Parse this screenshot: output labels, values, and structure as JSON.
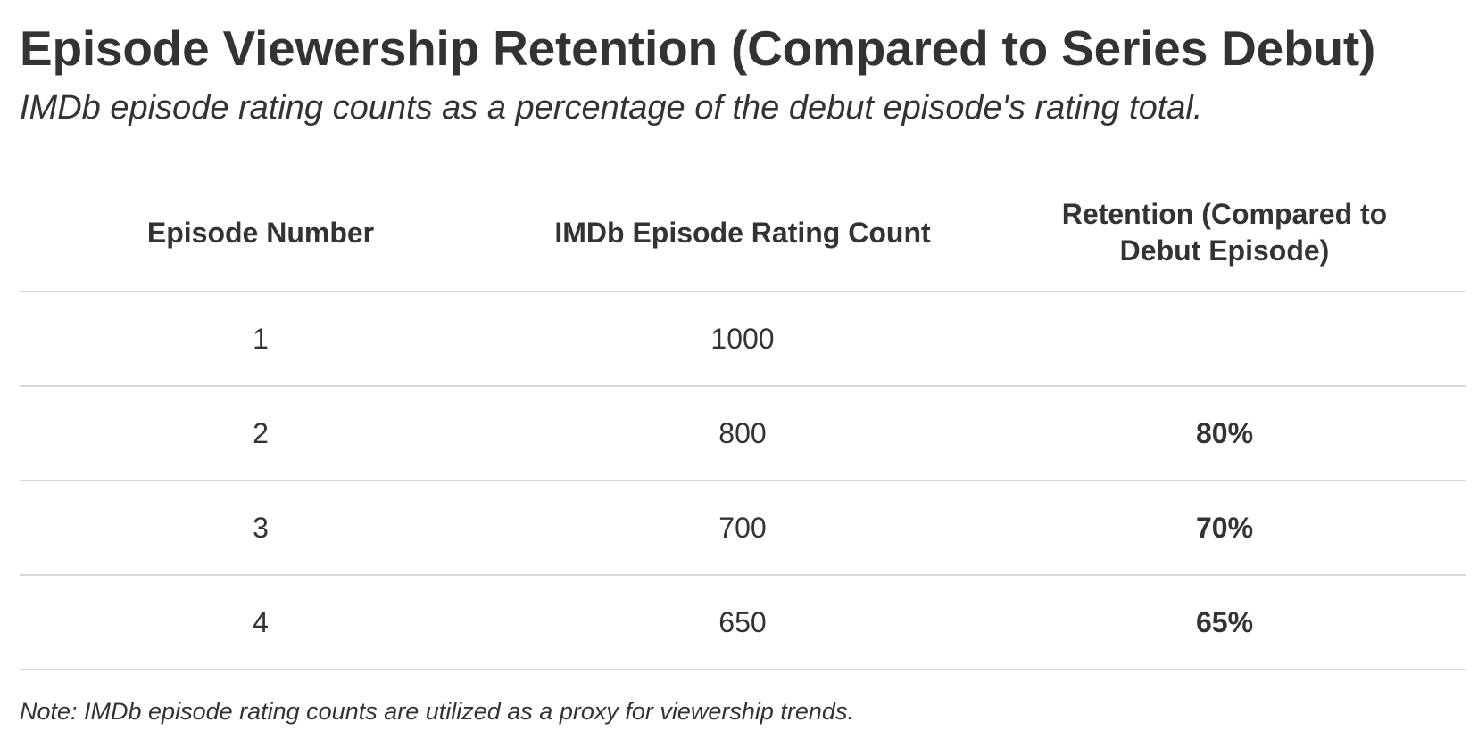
{
  "title": "Episode Viewership Retention (Compared to Series Debut)",
  "subtitle": "IMDb episode rating counts as a percentage of the debut episode's rating total.",
  "note": "Note: IMDb episode rating counts are utilized as a proxy for viewership trends.",
  "chart_data": {
    "type": "table",
    "title": "Episode Viewership Retention (Compared to Series Debut)",
    "subtitle": "IMDb episode rating counts as a percentage of the debut episode's rating total.",
    "columns": [
      "Episode Number",
      "IMDb Episode Rating Count",
      "Retention (Compared to Debut Episode)"
    ],
    "rows": [
      {
        "episode": "1",
        "rating_count": "1000",
        "retention": ""
      },
      {
        "episode": "2",
        "rating_count": "800",
        "retention": "80%"
      },
      {
        "episode": "3",
        "rating_count": "700",
        "retention": "70%"
      },
      {
        "episode": "4",
        "rating_count": "650",
        "retention": "65%"
      }
    ],
    "note": "Note: IMDb episode rating counts are utilized as a proxy for viewership trends."
  }
}
